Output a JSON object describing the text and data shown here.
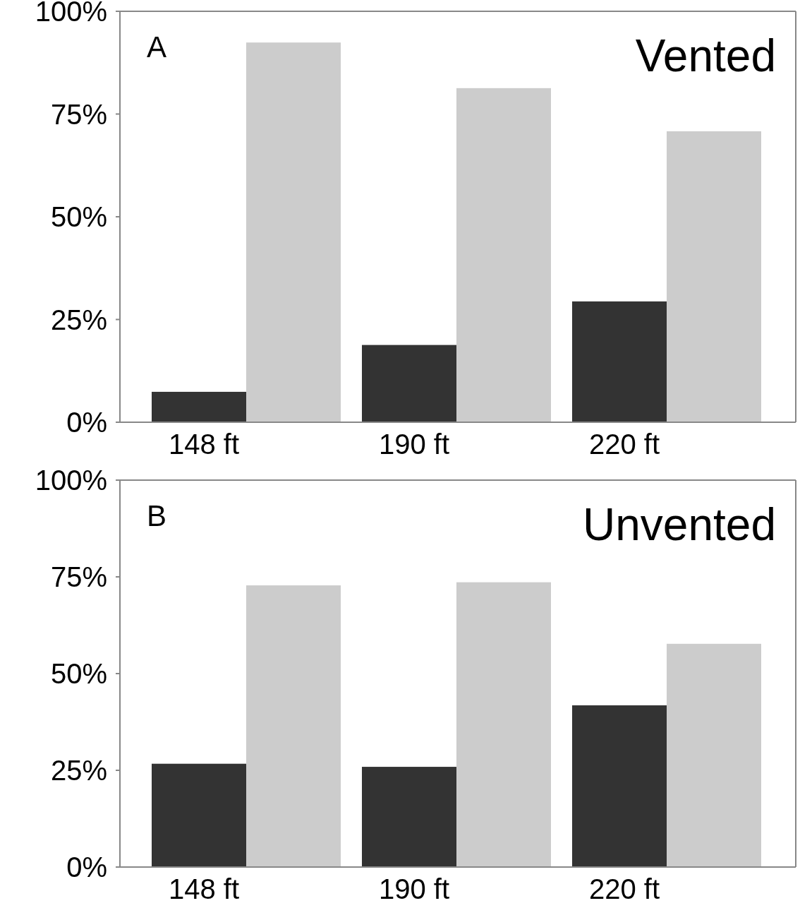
{
  "chart_data": [
    {
      "type": "bar",
      "title": "Vented",
      "annotations": [
        "A"
      ],
      "categories": [
        "148 ft",
        "190 ft",
        "220 ft"
      ],
      "series": [
        {
          "color": "#333333",
          "values": [
            7.4,
            18.8,
            29.4
          ]
        },
        {
          "color": "#cccccc",
          "values": [
            92.4,
            81.3,
            70.8
          ]
        }
      ],
      "ylim": [
        0,
        100
      ],
      "yticks": [
        {
          "value": 0,
          "label": "0%"
        },
        {
          "value": 25,
          "label": "25%"
        },
        {
          "value": 50,
          "label": "50%"
        },
        {
          "value": 75,
          "label": "75%"
        },
        {
          "value": 100,
          "label": "100%"
        }
      ]
    },
    {
      "type": "bar",
      "title": "Unvented",
      "annotations": [
        "B"
      ],
      "categories": [
        "148 ft",
        "190 ft",
        "220 ft"
      ],
      "series": [
        {
          "color": "#333333",
          "values": [
            26.7,
            25.9,
            41.8
          ]
        },
        {
          "color": "#cccccc",
          "values": [
            72.8,
            73.6,
            57.7
          ]
        }
      ],
      "ylim": [
        0,
        100
      ],
      "yticks": [
        {
          "value": 0,
          "label": "0%"
        },
        {
          "value": 25,
          "label": "25%"
        },
        {
          "value": 50,
          "label": "50%"
        },
        {
          "value": 75,
          "label": "75%"
        },
        {
          "value": 100,
          "label": "100%"
        }
      ]
    }
  ]
}
